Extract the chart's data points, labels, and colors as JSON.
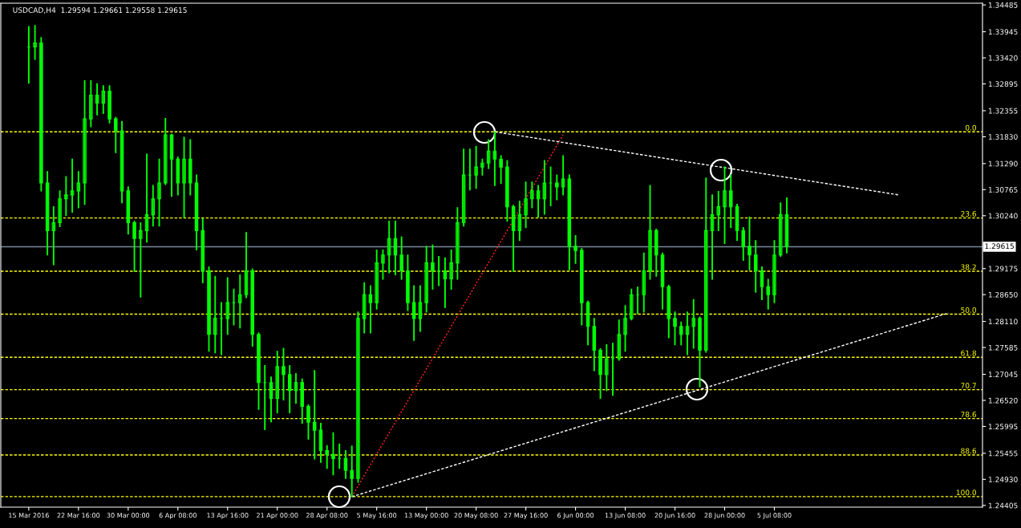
{
  "chart_data": {
    "type": "candlestick",
    "title": "USDCAD,H4  1.29594 1.29661 1.29558 1.29615",
    "color": "#00ff00",
    "categories": [
      "15 Mar 2016",
      null,
      null,
      null,
      null,
      null,
      null,
      null,
      "22 Mar 16:00",
      null,
      null,
      null,
      null,
      null,
      null,
      null,
      "30 Mar 00:00",
      null,
      null,
      null,
      null,
      null,
      null,
      null,
      "6 Apr 08:00",
      null,
      null,
      null,
      null,
      null,
      null,
      null,
      "13 Apr 16:00",
      null,
      null,
      null,
      null,
      null,
      null,
      null,
      "21 Apr 00:00",
      null,
      null,
      null,
      null,
      null,
      null,
      null,
      "28 Apr 08:00",
      null,
      null,
      null,
      null,
      null,
      null,
      null,
      "5 May 16:00",
      null,
      null,
      null,
      null,
      null,
      null,
      null,
      "13 May 00:00",
      null,
      null,
      null,
      null,
      null,
      null,
      null,
      "20 May 08:00",
      null,
      null,
      null,
      null,
      null,
      null,
      null,
      "27 May 16:00",
      null,
      null,
      null,
      null,
      null,
      null,
      null,
      "6 Jun 00:00",
      null,
      null,
      null,
      null,
      null,
      null,
      null,
      "13 Jun 08:00",
      null,
      null,
      null,
      null,
      null,
      null,
      null,
      "20 Jun 16:00",
      null,
      null,
      null,
      null,
      null,
      null,
      null,
      "28 Jun 00:00",
      null,
      null,
      null,
      null,
      null,
      null,
      null,
      "5 Jul 08:00",
      null,
      null,
      null,
      null,
      null,
      null,
      null,
      null,
      null,
      null,
      null,
      null,
      null,
      null,
      null,
      null,
      null,
      null,
      null,
      null,
      null,
      null,
      null,
      null,
      null,
      null,
      null,
      null,
      null,
      null,
      null,
      null,
      null
    ],
    "ohlc": [
      [
        1.3364,
        1.3405,
        1.3291,
        1.3364
      ],
      [
        1.3364,
        1.3407,
        1.3339,
        1.3372
      ],
      [
        1.3372,
        1.3383,
        1.3074,
        1.309
      ],
      [
        1.309,
        1.3113,
        1.2945,
        1.2994
      ],
      [
        1.2994,
        1.3042,
        1.2925,
        1.301
      ],
      [
        1.301,
        1.3074,
        1.3002,
        1.3058
      ],
      [
        1.3058,
        1.3103,
        1.3024,
        1.3066
      ],
      [
        1.3066,
        1.3138,
        1.3031,
        1.3074
      ],
      [
        1.3074,
        1.3113,
        1.304,
        1.309
      ],
      [
        1.309,
        1.3296,
        1.3047,
        1.3219
      ],
      [
        1.3219,
        1.3296,
        1.3203,
        1.3267
      ],
      [
        1.3267,
        1.329,
        1.3227,
        1.3251
      ],
      [
        1.3251,
        1.3286,
        1.323,
        1.3275
      ],
      [
        1.3275,
        1.3286,
        1.3211,
        1.3219
      ],
      [
        1.3219,
        1.3222,
        1.3151,
        1.3195
      ],
      [
        1.3195,
        1.3214,
        1.305,
        1.3074
      ],
      [
        1.3074,
        1.3082,
        1.2987,
        1.301
      ],
      [
        1.301,
        1.3013,
        1.2912,
        1.2978
      ],
      [
        1.2978,
        1.301,
        1.286,
        1.2994
      ],
      [
        1.2994,
        1.3148,
        1.2971,
        1.3026
      ],
      [
        1.3026,
        1.3085,
        1.3003,
        1.3058
      ],
      [
        1.3058,
        1.3138,
        1.3003,
        1.309
      ],
      [
        1.309,
        1.322,
        1.3087,
        1.3187
      ],
      [
        1.3187,
        1.3188,
        1.3063,
        1.3138
      ],
      [
        1.3138,
        1.3142,
        1.3066,
        1.309
      ],
      [
        1.309,
        1.3182,
        1.3021,
        1.3138
      ],
      [
        1.3138,
        1.3177,
        1.3066,
        1.309
      ],
      [
        1.309,
        1.3106,
        1.2955,
        1.2994
      ],
      [
        1.2994,
        1.3018,
        1.2889,
        1.2913
      ],
      [
        1.2913,
        1.2921,
        1.2751,
        1.2785
      ],
      [
        1.2785,
        1.2902,
        1.2748,
        1.2817
      ],
      [
        1.2817,
        1.2849,
        1.2744,
        1.2817
      ],
      [
        1.2817,
        1.2899,
        1.2785,
        1.2849
      ],
      [
        1.2849,
        1.2876,
        1.2804,
        1.2849
      ],
      [
        1.2849,
        1.2905,
        1.2798,
        1.2865
      ],
      [
        1.2865,
        1.299,
        1.2859,
        1.2913
      ],
      [
        1.2913,
        1.2917,
        1.2761,
        1.2785
      ],
      [
        1.2785,
        1.2788,
        1.2634,
        1.2688
      ],
      [
        1.2688,
        1.2722,
        1.2593,
        1.2688
      ],
      [
        1.2688,
        1.2699,
        1.2609,
        1.2656
      ],
      [
        1.2656,
        1.2751,
        1.2627,
        1.272
      ],
      [
        1.272,
        1.2757,
        1.2653,
        1.2704
      ],
      [
        1.2704,
        1.2722,
        1.2627,
        1.2672
      ],
      [
        1.2672,
        1.2706,
        1.2646,
        1.2688
      ],
      [
        1.2688,
        1.2695,
        1.2606,
        1.264
      ],
      [
        1.264,
        1.2643,
        1.2574,
        1.2608
      ],
      [
        1.2608,
        1.2712,
        1.2534,
        1.2592
      ],
      [
        1.2592,
        1.2606,
        1.2527,
        1.2551
      ],
      [
        1.2551,
        1.2561,
        1.2515,
        1.2543
      ],
      [
        1.2543,
        1.2587,
        1.2502,
        1.2535
      ],
      [
        1.2535,
        1.2564,
        1.2515,
        1.2535
      ],
      [
        1.2535,
        1.2551,
        1.2495,
        1.2511
      ],
      [
        1.2511,
        1.256,
        1.2458,
        1.2495
      ],
      [
        1.2495,
        1.283,
        1.2487,
        1.2817
      ],
      [
        1.2817,
        1.2889,
        1.2788,
        1.2865
      ],
      [
        1.2865,
        1.2883,
        1.2788,
        1.2849
      ],
      [
        1.2849,
        1.2955,
        1.2836,
        1.2929
      ],
      [
        1.2929,
        1.2955,
        1.2896,
        1.2945
      ],
      [
        1.2945,
        1.3013,
        1.2909,
        1.2978
      ],
      [
        1.2978,
        1.3013,
        1.2905,
        1.2945
      ],
      [
        1.2945,
        1.2981,
        1.2896,
        1.2913
      ],
      [
        1.2913,
        1.2945,
        1.2833,
        1.2849
      ],
      [
        1.2849,
        1.2883,
        1.2773,
        1.2817
      ],
      [
        1.2817,
        1.2883,
        1.2791,
        1.2849
      ],
      [
        1.2849,
        1.2962,
        1.283,
        1.2929
      ],
      [
        1.2929,
        1.2965,
        1.2876,
        1.2913
      ],
      [
        1.2913,
        1.2942,
        1.2883,
        1.2913
      ],
      [
        1.2913,
        1.2939,
        1.2839,
        1.2897
      ],
      [
        1.2897,
        1.2955,
        1.2876,
        1.2929
      ],
      [
        1.2929,
        1.304,
        1.2896,
        1.301
      ],
      [
        1.301,
        1.3158,
        1.3003,
        1.3106
      ],
      [
        1.3106,
        1.3158,
        1.3076,
        1.3106
      ],
      [
        1.3106,
        1.3164,
        1.3079,
        1.3122
      ],
      [
        1.3122,
        1.3138,
        1.3106,
        1.313
      ],
      [
        1.313,
        1.3177,
        1.3119,
        1.3154
      ],
      [
        1.3154,
        1.3193,
        1.3085,
        1.3138
      ],
      [
        1.3138,
        1.3145,
        1.3089,
        1.3122
      ],
      [
        1.3122,
        1.3135,
        1.3013,
        1.3042
      ],
      [
        1.3042,
        1.3045,
        1.2912,
        1.2994
      ],
      [
        1.2994,
        1.3053,
        1.2974,
        1.3026
      ],
      [
        1.3026,
        1.3092,
        1.3,
        1.3058
      ],
      [
        1.3058,
        1.3092,
        1.304,
        1.3074
      ],
      [
        1.3074,
        1.3085,
        1.3021,
        1.3058
      ],
      [
        1.3058,
        1.3135,
        1.3027,
        1.309
      ],
      [
        1.309,
        1.3122,
        1.3044,
        1.309
      ],
      [
        1.309,
        1.3106,
        1.3056,
        1.3082
      ],
      [
        1.3082,
        1.3145,
        1.3066,
        1.3098
      ],
      [
        1.3098,
        1.3106,
        1.2915,
        1.2962
      ],
      [
        1.2962,
        1.2984,
        1.2928,
        1.2954
      ],
      [
        1.2954,
        1.2958,
        1.2804,
        1.2849
      ],
      [
        1.2849,
        1.2852,
        1.2764,
        1.2801
      ],
      [
        1.2801,
        1.2817,
        1.2712,
        1.2753
      ],
      [
        1.2753,
        1.2756,
        1.2656,
        1.2704
      ],
      [
        1.2704,
        1.2764,
        1.2672,
        1.2736
      ],
      [
        1.2736,
        1.2767,
        1.2662,
        1.2736
      ],
      [
        1.2736,
        1.2814,
        1.2733,
        1.2785
      ],
      [
        1.2785,
        1.2843,
        1.2751,
        1.2817
      ],
      [
        1.2817,
        1.2876,
        1.2814,
        1.2865
      ],
      [
        1.2865,
        1.288,
        1.2826,
        1.2865
      ],
      [
        1.2865,
        1.2949,
        1.283,
        1.2913
      ],
      [
        1.2913,
        1.3085,
        1.2896,
        1.2994
      ],
      [
        1.2994,
        1.2997,
        1.2902,
        1.2945
      ],
      [
        1.2945,
        1.2949,
        1.2836,
        1.2881
      ],
      [
        1.2881,
        1.2884,
        1.2778,
        1.2817
      ],
      [
        1.2817,
        1.283,
        1.2764,
        1.2801
      ],
      [
        1.2801,
        1.281,
        1.2764,
        1.2785
      ],
      [
        1.2785,
        1.283,
        1.2744,
        1.2801
      ],
      [
        1.2801,
        1.2855,
        1.2757,
        1.2817
      ],
      [
        1.2817,
        1.282,
        1.2679,
        1.2753
      ],
      [
        1.2753,
        1.31,
        1.2749,
        1.2994
      ],
      [
        1.2994,
        1.3066,
        1.2896,
        1.3026
      ],
      [
        1.3026,
        1.3073,
        1.2994,
        1.3042
      ],
      [
        1.3042,
        1.3122,
        1.2968,
        1.3074
      ],
      [
        1.3074,
        1.3106,
        1.3,
        1.3042
      ],
      [
        1.3042,
        1.3047,
        1.2974,
        1.2994
      ],
      [
        1.2994,
        1.3,
        1.2934,
        1.2962
      ],
      [
        1.2962,
        1.3021,
        1.2915,
        1.2945
      ],
      [
        1.2945,
        1.2974,
        1.287,
        1.2913
      ],
      [
        1.2913,
        1.2921,
        1.2855,
        1.2881
      ],
      [
        1.2881,
        1.2896,
        1.2836,
        1.2865
      ],
      [
        1.2865,
        1.2974,
        1.2849,
        1.2945
      ],
      [
        1.2945,
        1.305,
        1.2942,
        1.3026
      ],
      [
        1.3026,
        1.306,
        1.2949,
        1.29615
      ],
      null,
      null,
      null,
      null,
      null,
      null,
      null,
      null,
      null,
      null,
      null,
      null,
      null,
      null,
      null,
      null,
      null,
      null,
      null,
      null,
      null,
      null,
      null,
      null,
      null,
      null,
      null,
      null,
      null,
      null,
      null
    ],
    "series": [
      {
        "type": "line",
        "color": "#ff2020",
        "line_style": "dotted",
        "values": [
          null,
          null,
          null,
          null,
          null,
          null,
          null,
          null,
          null,
          null,
          null,
          null,
          null,
          null,
          null,
          null,
          null,
          null,
          null,
          null,
          null,
          null,
          null,
          null,
          null,
          null,
          null,
          null,
          null,
          null,
          null,
          null,
          null,
          null,
          null,
          null,
          null,
          null,
          null,
          null,
          null,
          null,
          null,
          null,
          null,
          null,
          null,
          null,
          null,
          null,
          null,
          null,
          1.2458,
          null,
          null,
          null,
          null,
          null,
          null,
          null,
          null,
          null,
          null,
          null,
          null,
          null,
          null,
          null,
          null,
          null,
          null,
          null,
          null,
          null,
          null,
          null,
          null,
          null,
          null,
          null,
          null,
          null,
          null,
          null,
          null,
          null,
          1.3187,
          null,
          null,
          null,
          null,
          null,
          null,
          null,
          null,
          null,
          null,
          null,
          null,
          null,
          null,
          null,
          null,
          null,
          null,
          null,
          null,
          null,
          null,
          null,
          null,
          null,
          null,
          null,
          null,
          null,
          null,
          null,
          null,
          null,
          null,
          null,
          null,
          null,
          null,
          null,
          null,
          null,
          null,
          null,
          null,
          null,
          null,
          null,
          null,
          null,
          null,
          null,
          null,
          null,
          null,
          null,
          null,
          null,
          null,
          null,
          null,
          null,
          null,
          null,
          null,
          null,
          null,
          null
        ]
      },
      {
        "type": "line",
        "color": "#ffffff",
        "line_style": "dashed",
        "values": [
          null,
          null,
          null,
          null,
          null,
          null,
          null,
          null,
          null,
          null,
          null,
          null,
          null,
          null,
          null,
          null,
          null,
          null,
          null,
          null,
          null,
          null,
          null,
          null,
          null,
          null,
          null,
          null,
          null,
          null,
          null,
          null,
          null,
          null,
          null,
          null,
          null,
          null,
          null,
          null,
          null,
          null,
          null,
          null,
          null,
          null,
          null,
          null,
          null,
          null,
          null,
          null,
          null,
          null,
          null,
          null,
          null,
          null,
          null,
          null,
          null,
          null,
          null,
          null,
          null,
          null,
          null,
          null,
          null,
          null,
          null,
          null,
          null,
          null,
          null,
          1.3193,
          null,
          null,
          null,
          null,
          null,
          null,
          null,
          null,
          null,
          null,
          null,
          null,
          null,
          null,
          null,
          null,
          null,
          null,
          null,
          null,
          null,
          null,
          null,
          null,
          null,
          null,
          null,
          null,
          null,
          null,
          null,
          null,
          null,
          null,
          null,
          null,
          null,
          null,
          null,
          null,
          null,
          null,
          null,
          null,
          null,
          null,
          null,
          null,
          null,
          null,
          null,
          null,
          null,
          null,
          null,
          null,
          null,
          null,
          null,
          null,
          null,
          null,
          null,
          null,
          1.3066,
          null,
          null,
          null,
          null,
          null,
          null,
          null,
          null,
          null,
          null,
          null,
          null,
          null
        ]
      },
      {
        "type": "line",
        "color": "#ffffff",
        "line_style": "dashed",
        "values": [
          null,
          null,
          null,
          null,
          null,
          null,
          null,
          null,
          null,
          null,
          null,
          null,
          null,
          null,
          null,
          null,
          null,
          null,
          null,
          null,
          null,
          null,
          null,
          null,
          null,
          null,
          null,
          null,
          null,
          null,
          null,
          null,
          null,
          null,
          null,
          null,
          null,
          null,
          null,
          null,
          null,
          null,
          null,
          null,
          null,
          null,
          null,
          null,
          null,
          null,
          null,
          null,
          1.2458,
          null,
          null,
          null,
          null,
          null,
          null,
          null,
          null,
          null,
          null,
          null,
          null,
          null,
          null,
          null,
          null,
          null,
          null,
          null,
          null,
          null,
          null,
          null,
          null,
          null,
          null,
          null,
          null,
          null,
          null,
          null,
          null,
          null,
          null,
          null,
          null,
          null,
          null,
          null,
          null,
          null,
          null,
          null,
          null,
          null,
          null,
          null,
          null,
          null,
          null,
          null,
          null,
          null,
          null,
          null,
          null,
          null,
          null,
          null,
          null,
          null,
          null,
          null,
          null,
          null,
          null,
          null,
          null,
          null,
          null,
          null,
          null,
          null,
          null,
          null,
          null,
          null,
          null,
          null,
          null,
          null,
          null,
          null,
          null,
          null,
          null,
          null,
          null,
          null,
          null,
          null,
          null,
          null,
          null,
          null,
          1.2828,
          null,
          null,
          null,
          null,
          null
        ]
      }
    ],
    "ylim": [
      1.2437,
      1.3452
    ],
    "yticks": [
      {
        "value": 1.34485,
        "label": "1.34485"
      },
      {
        "value": 1.33945,
        "label": "1.33945"
      },
      {
        "value": 1.3342,
        "label": "1.33420"
      },
      {
        "value": 1.32895,
        "label": "1.32895"
      },
      {
        "value": 1.32355,
        "label": "1.32355"
      },
      {
        "value": 1.3183,
        "label": "1.31830"
      },
      {
        "value": 1.3129,
        "label": "1.31290"
      },
      {
        "value": 1.30765,
        "label": "1.30765"
      },
      {
        "value": 1.3024,
        "label": "1.30240"
      },
      {
        "value": 1.29175,
        "label": "1.29175"
      },
      {
        "value": 1.2865,
        "label": "1.28650"
      },
      {
        "value": 1.2811,
        "label": "1.28110"
      },
      {
        "value": 1.27585,
        "label": "1.27585"
      },
      {
        "value": 1.27045,
        "label": "1.27045"
      },
      {
        "value": 1.2652,
        "label": "1.26520"
      },
      {
        "value": 1.25995,
        "label": "1.25995"
      },
      {
        "value": 1.25455,
        "label": "1.25455"
      },
      {
        "value": 1.2493,
        "label": "1.24930"
      },
      {
        "value": 1.24405,
        "label": "1.24405"
      }
    ],
    "ref_lines": [
      {
        "axis": "y",
        "value": 1.31929,
        "color": "#ffff00",
        "line_style": "dashed"
      },
      {
        "axis": "y",
        "value": 1.30195,
        "color": "#ffff00",
        "line_style": "dashed"
      },
      {
        "axis": "y",
        "value": 1.29122,
        "color": "#ffff00",
        "line_style": "dashed"
      },
      {
        "axis": "y",
        "value": 1.28256,
        "color": "#ffff00",
        "line_style": "dashed"
      },
      {
        "axis": "y",
        "value": 1.27389,
        "color": "#ffff00",
        "line_style": "dashed"
      },
      {
        "axis": "y",
        "value": 1.26735,
        "color": "#ffff00",
        "line_style": "dashed"
      },
      {
        "axis": "y",
        "value": 1.26154,
        "color": "#ffff00",
        "line_style": "dashed"
      },
      {
        "axis": "y",
        "value": 1.2542,
        "color": "#ffff00",
        "line_style": "dashed"
      },
      {
        "axis": "y",
        "value": 1.24582,
        "color": "#ffff00",
        "line_style": "dashed"
      },
      {
        "axis": "y",
        "value": 1.29615,
        "label": "1.29615",
        "color": "#778899",
        "line_style": "solid"
      }
    ],
    "annotations": [
      {
        "text": "0.0",
        "y": 1.31929
      },
      {
        "text": "23.6",
        "y": 1.30195
      },
      {
        "text": "38.2",
        "y": 1.29122
      },
      {
        "text": "50.0",
        "y": 1.28256
      },
      {
        "text": "61.8",
        "y": 1.27389
      },
      {
        "text": "70.7",
        "y": 1.26735
      },
      {
        "text": "78.6",
        "y": 1.26154
      },
      {
        "text": "88.6",
        "y": 1.2542
      },
      {
        "text": "100.0",
        "y": 1.24582
      }
    ]
  }
}
